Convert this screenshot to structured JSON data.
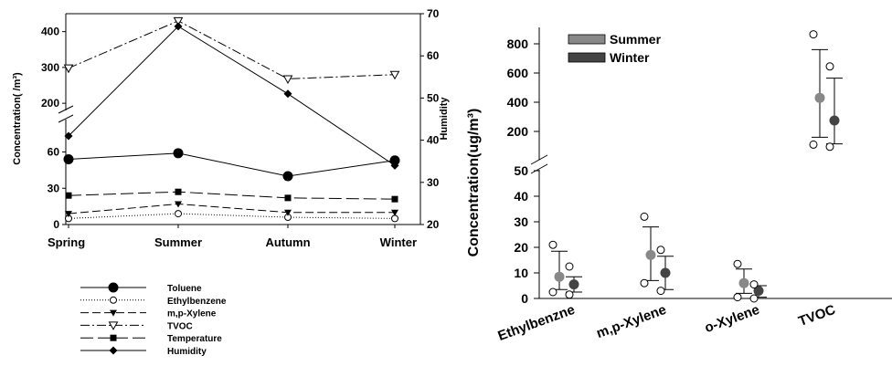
{
  "chart_data": [
    {
      "type": "line",
      "x": [
        "Spring",
        "Summer",
        "Autumn",
        "Winter"
      ],
      "ylabel": "Concentration( /m³)",
      "y2label": "Humidity",
      "y_ticks_lower": [
        "0",
        "30",
        "60"
      ],
      "y_ticks_upper": [
        "200",
        "300",
        "400"
      ],
      "y_broken_axis": {
        "lower": [
          0,
          80
        ],
        "upper": [
          180,
          450
        ]
      },
      "y2_ticks": [
        "20",
        "30",
        "40",
        "50",
        "60",
        "70"
      ],
      "y2lim": [
        20,
        70
      ],
      "series": [
        {
          "name": "Toluene",
          "axis": "left",
          "style": "solid",
          "marker": "filled-circle-large",
          "values": [
            54,
            59,
            40,
            53
          ]
        },
        {
          "name": "Ethylbenzene",
          "axis": "left",
          "style": "dotted",
          "marker": "open-circle",
          "values": [
            5,
            9,
            6,
            5
          ]
        },
        {
          "name": "m,p-Xylene",
          "axis": "left",
          "style": "dashed",
          "marker": "filled-triangle-down",
          "values": [
            9,
            17,
            10,
            10
          ]
        },
        {
          "name": "TVOC",
          "axis": "left",
          "style": "dash-dot",
          "marker": "open-triangle-down",
          "values": [
            298,
            430,
            268,
            280
          ]
        },
        {
          "name": "Temperature",
          "axis": "left",
          "style": "long-dash",
          "marker": "filled-square",
          "values": [
            24,
            27,
            22,
            21
          ]
        },
        {
          "name": "Humidity",
          "axis": "right",
          "style": "solid",
          "marker": "filled-diamond",
          "values": [
            41,
            67,
            51,
            34
          ]
        }
      ],
      "legend_position": "bottom-left"
    },
    {
      "type": "scatter",
      "categories": [
        "Ethylbenzne",
        "m,p-Xylene",
        "o-Xylene",
        "TVOC"
      ],
      "ylabel": "Concentration(ug/m³)",
      "y_ticks_lower": [
        "0",
        "10",
        "20",
        "30",
        "40",
        "50"
      ],
      "y_ticks_upper": [
        "200",
        "400",
        "600",
        "800"
      ],
      "y_broken_axis": {
        "lower": [
          0,
          50
        ],
        "upper": [
          120,
          850
        ]
      },
      "legend_position": "top-left",
      "series": [
        {
          "name": "Summer",
          "color": "#888888",
          "mean": [
            8.5,
            17,
            6,
            430
          ],
          "err_low": [
            3.5,
            7,
            2,
            160
          ],
          "err_high": [
            18.5,
            28,
            11.5,
            760
          ],
          "min": [
            2.5,
            6,
            0.5,
            110
          ],
          "max": [
            21,
            32,
            13.5,
            865
          ]
        },
        {
          "name": "Winter",
          "color": "#444444",
          "mean": [
            5.5,
            10,
            3,
            275
          ],
          "err_low": [
            2.5,
            3.5,
            0.5,
            115
          ],
          "err_high": [
            8.5,
            16.5,
            5,
            565
          ],
          "min": [
            1.5,
            3,
            0,
            95
          ],
          "max": [
            12.5,
            19,
            5.5,
            645
          ]
        }
      ]
    }
  ]
}
